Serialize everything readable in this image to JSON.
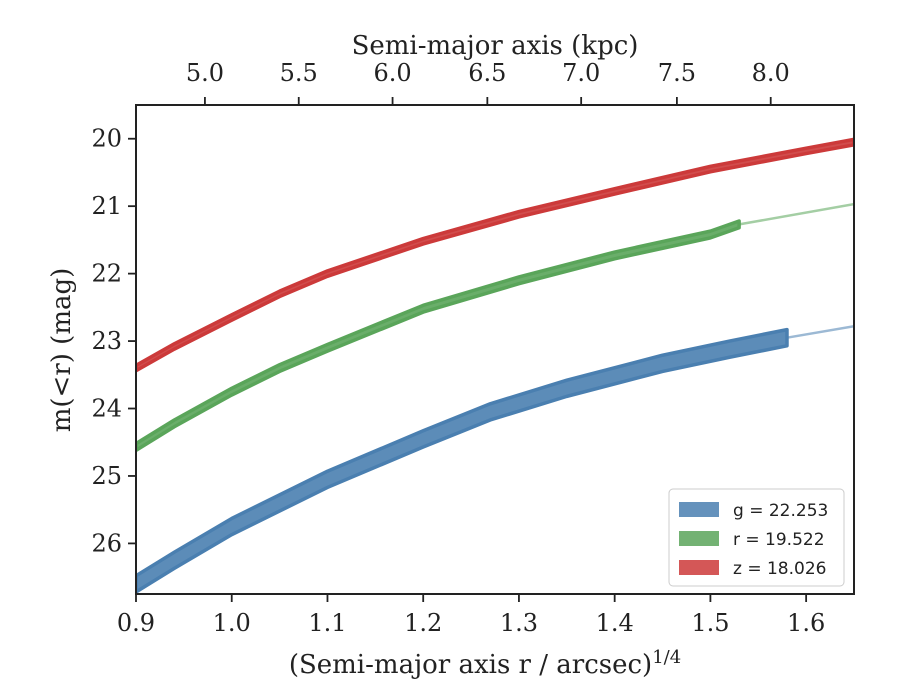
{
  "chart_data": {
    "type": "line",
    "xlabel": "(Semi-major axis r / arcsec)",
    "xlabel_sup": "1/4",
    "ylabel": "m(<r) (mag)",
    "top_xlabel": "Semi-major axis (kpc)",
    "xlim": [
      0.9,
      1.65
    ],
    "ylim": [
      26.75,
      19.5
    ],
    "y_inverted": true,
    "x_ticks": [
      0.9,
      1.0,
      1.1,
      1.2,
      1.3,
      1.4,
      1.5,
      1.6
    ],
    "x_tick_labels": [
      "0.9",
      "1.0",
      "1.1",
      "1.2",
      "1.3",
      "1.4",
      "1.5",
      "1.6"
    ],
    "y_ticks": [
      20,
      21,
      22,
      23,
      24,
      25,
      26
    ],
    "y_tick_labels": [
      "20",
      "21",
      "22",
      "23",
      "24",
      "25",
      "26"
    ],
    "top_x_ticks": [
      5.0,
      5.5,
      6.0,
      6.5,
      7.0,
      7.5,
      8.0
    ],
    "top_x_tick_labels": [
      "5.0",
      "5.5",
      "6.0",
      "6.5",
      "7.0",
      "7.5",
      "8.0"
    ],
    "top_x_tick_positions": [
      0.972,
      1.07,
      1.168,
      1.267,
      1.365,
      1.465,
      1.563
    ],
    "grid": false,
    "legend_position": "lower-right",
    "series": [
      {
        "name": "g",
        "legend_label": "g = 22.253",
        "color": "#4a7fb0",
        "x": [
          0.9,
          0.94,
          1.0,
          1.1,
          1.2,
          1.27,
          1.35,
          1.45,
          1.52,
          1.58
        ],
        "y": [
          26.6,
          26.25,
          25.75,
          25.05,
          24.45,
          24.05,
          23.7,
          23.33,
          23.12,
          22.95
        ],
        "band_halfwidth": 0.12,
        "x_ext": [
          1.58,
          1.65
        ],
        "y_ext": [
          22.95,
          22.78
        ]
      },
      {
        "name": "r",
        "legend_label": "r = 19.522",
        "color": "#5aa55a",
        "x": [
          0.9,
          0.94,
          1.0,
          1.05,
          1.1,
          1.2,
          1.3,
          1.4,
          1.5,
          1.53
        ],
        "y": [
          24.57,
          24.22,
          23.75,
          23.4,
          23.1,
          22.52,
          22.1,
          21.73,
          21.42,
          21.27
        ],
        "band_halfwidth": 0.05,
        "x_ext": [
          1.53,
          1.65
        ],
        "y_ext": [
          21.27,
          20.97
        ]
      },
      {
        "name": "z",
        "legend_label": "z = 18.026",
        "color": "#cc3a3a",
        "x": [
          0.9,
          0.94,
          1.0,
          1.05,
          1.1,
          1.2,
          1.3,
          1.4,
          1.5,
          1.6,
          1.65
        ],
        "y": [
          23.4,
          23.08,
          22.65,
          22.3,
          22.0,
          21.52,
          21.12,
          20.78,
          20.45,
          20.18,
          20.05
        ],
        "band_halfwidth": 0.04,
        "x_ext": null,
        "y_ext": null
      }
    ]
  }
}
